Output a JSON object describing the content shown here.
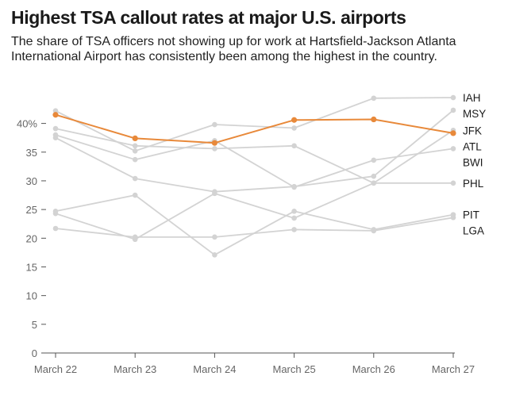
{
  "title": "Highest TSA callout rates at major U.S. airports",
  "subtitle": "The share of TSA officers not showing up for work at Hartsfield-Jackson Atlanta International Airport has consistently been among the highest in the country.",
  "colors": {
    "highlight": "#e8893a",
    "other": "#d3d3d3",
    "axis": "#555555",
    "text": "#1a1a1a"
  },
  "chart_data": {
    "type": "line",
    "title": "Highest TSA callout rates at major U.S. airports",
    "xlabel": "",
    "ylabel": "",
    "categories": [
      "March 22",
      "March 23",
      "March 24",
      "March 25",
      "March 26",
      "March 27"
    ],
    "ylim": [
      0,
      45
    ],
    "yticks": [
      0,
      5,
      10,
      15,
      20,
      25,
      30,
      35,
      40
    ],
    "ytick_labels": [
      "0",
      "5",
      "10",
      "15",
      "20",
      "25",
      "30",
      "35",
      "40%"
    ],
    "grid": false,
    "highlight": "ATL",
    "series": [
      {
        "name": "IAH",
        "values": [
          42.2,
          35.2,
          39.8,
          39.2,
          44.4,
          44.5
        ]
      },
      {
        "name": "MSY",
        "values": [
          37.5,
          30.4,
          28.1,
          29.0,
          30.8,
          42.3
        ]
      },
      {
        "name": "JFK",
        "values": [
          39.1,
          36.1,
          35.6,
          36.1,
          29.6,
          38.8
        ]
      },
      {
        "name": "ATL",
        "values": [
          41.5,
          37.4,
          36.6,
          40.6,
          40.7,
          38.3
        ]
      },
      {
        "name": "BWI",
        "values": [
          38.0,
          33.7,
          37.0,
          28.9,
          33.6,
          35.6
        ]
      },
      {
        "name": "PHL",
        "values": [
          24.3,
          19.8,
          27.8,
          23.5,
          29.6,
          29.6
        ]
      },
      {
        "name": "PIT",
        "values": [
          24.7,
          27.5,
          17.1,
          24.7,
          21.5,
          24.1
        ]
      },
      {
        "name": "LGA",
        "values": [
          21.7,
          20.2,
          20.2,
          21.5,
          21.3,
          23.6
        ]
      }
    ],
    "end_labels": [
      "IAH",
      "MSY",
      "JFK",
      "ATL",
      "BWI",
      "PHL",
      "PIT",
      "LGA"
    ]
  }
}
